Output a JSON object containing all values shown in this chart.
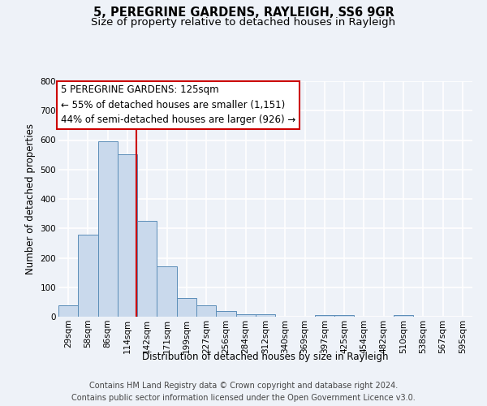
{
  "title": "5, PEREGRINE GARDENS, RAYLEIGH, SS6 9GR",
  "subtitle": "Size of property relative to detached houses in Rayleigh",
  "xlabel": "Distribution of detached houses by size in Rayleigh",
  "ylabel": "Number of detached properties",
  "bar_labels": [
    "29sqm",
    "58sqm",
    "86sqm",
    "114sqm",
    "142sqm",
    "171sqm",
    "199sqm",
    "227sqm",
    "256sqm",
    "284sqm",
    "312sqm",
    "340sqm",
    "369sqm",
    "397sqm",
    "425sqm",
    "454sqm",
    "482sqm",
    "510sqm",
    "538sqm",
    "567sqm",
    "595sqm"
  ],
  "bar_heights": [
    38,
    278,
    595,
    553,
    325,
    170,
    63,
    38,
    18,
    8,
    8,
    0,
    0,
    5,
    5,
    0,
    0,
    5,
    0,
    0,
    0
  ],
  "bar_color": "#c9d9ec",
  "bar_edge_color": "#5b8db8",
  "vline_x": 3.97,
  "vline_color": "#cc0000",
  "ylim": [
    0,
    800
  ],
  "yticks": [
    0,
    100,
    200,
    300,
    400,
    500,
    600,
    700,
    800
  ],
  "annotation_title": "5 PEREGRINE GARDENS: 125sqm",
  "annotation_line1": "← 55% of detached houses are smaller (1,151)",
  "annotation_line2": "44% of semi-detached houses are larger (926) →",
  "annotation_box_color": "#ffffff",
  "annotation_box_edge": "#cc0000",
  "footer_line1": "Contains HM Land Registry data © Crown copyright and database right 2024.",
  "footer_line2": "Contains public sector information licensed under the Open Government Licence v3.0.",
  "bg_color": "#eef2f8",
  "plot_bg_color": "#eef2f8",
  "grid_color": "#ffffff",
  "title_fontsize": 10.5,
  "subtitle_fontsize": 9.5,
  "axis_label_fontsize": 8.5,
  "tick_fontsize": 7.5,
  "footer_fontsize": 7,
  "annotation_fontsize": 8.5
}
